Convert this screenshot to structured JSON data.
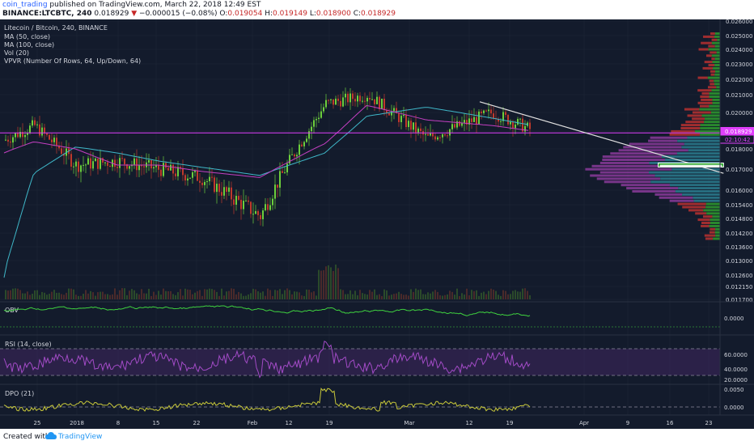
{
  "header": {
    "author": "coin_trading",
    "published_text": "published on TradingView.com, March 22, 2018 12:49 EST",
    "symbol": "BINANCE:LTCBTC, 240",
    "last": "0.018929",
    "change": "−0.000015 (−0.08%)",
    "o_label": "O:",
    "o": "0.019054",
    "h_label": "H:",
    "h": "0.019149",
    "l_label": "L:",
    "l": "0.018900",
    "c_label": "C:",
    "c": "0.018929"
  },
  "legend": {
    "title": "Litecoin / Bitcoin, 240, BINANCE",
    "ma50": "MA (50, close)",
    "ma100": "MA (100, close)",
    "vol": "Vol (20)",
    "vpvr": "VPVR (Number Of Rows, 64, Up/Down, 64)"
  },
  "price_axis": {
    "labels": [
      "0.026000",
      "0.025000",
      "0.024000",
      "0.023000",
      "0.022000",
      "0.021000",
      "0.020000",
      "0.019000",
      "0.018000",
      "0.017000",
      "0.016000",
      "0.015400",
      "0.014800",
      "0.014200",
      "0.013600",
      "0.013000",
      "0.012600",
      "0.012150",
      "0.011700"
    ],
    "last_price_tag": "0.018929",
    "countdown_tag": "02:10:42"
  },
  "x_axis": {
    "labels": [
      "25",
      "2018",
      "8",
      "15",
      "22",
      "Feb",
      "12",
      "19",
      "Mar",
      "12",
      "19",
      "Apr",
      "9",
      "16",
      "23"
    ]
  },
  "panes": {
    "obv": {
      "label": "OBV",
      "axis": [
        "0.0000"
      ]
    },
    "rsi": {
      "label": "RSI (14, close)",
      "axis": [
        "60.0000",
        "40.0000",
        "20.0000"
      ]
    },
    "dpo": {
      "label": "DPO (21)",
      "axis": [
        "0.0050",
        "0.0000"
      ]
    }
  },
  "colors": {
    "bg": "#131b2c",
    "up": "#6ccf3c",
    "down": "#c0392b",
    "ma50": "#c43fc2",
    "ma100": "#3fb7c8",
    "obv": "#3fd13f",
    "rsi": "#a24bc6",
    "dpo": "#c8c83a",
    "hline": "#e040fb"
  },
  "chart_data": {
    "type": "line",
    "title": "Litecoin / Bitcoin, 240, BINANCE",
    "x": [
      "Dec 20",
      "Dec 25",
      "Jan 1",
      "Jan 8",
      "Jan 15",
      "Jan 22",
      "Feb 1",
      "Feb 12",
      "Feb 19",
      "Mar 1",
      "Mar 12",
      "Mar 19",
      "Mar 22"
    ],
    "series": [
      {
        "name": "Litecoin / Bitcoin",
        "values": [
          0.0185,
          0.0193,
          0.0172,
          0.0174,
          0.017,
          0.0166,
          0.0149,
          0.0205,
          0.021,
          0.0186,
          0.02,
          0.019,
          0.0189
        ]
      },
      {
        "name": "MA (50, close)",
        "values": [
          0.0178,
          0.0184,
          0.018,
          0.0172,
          0.0172,
          0.0169,
          0.0166,
          0.0183,
          0.0204,
          0.0196,
          0.0193,
          0.019,
          0.0189
        ]
      },
      {
        "name": "MA (100, close)",
        "values": [
          0.0125,
          0.0168,
          0.0181,
          0.0178,
          0.0174,
          0.0171,
          0.0167,
          0.0178,
          0.0198,
          0.0203,
          0.0197,
          0.0193,
          0.0191
        ]
      }
    ],
    "yaxis_ticks": [
      "0.026000",
      "0.025000",
      "0.024000",
      "0.023000",
      "0.022000",
      "0.021000",
      "0.020000",
      "0.019000",
      "0.018000",
      "0.017000",
      "0.016000",
      "0.015400",
      "0.014800",
      "0.014200",
      "0.013600",
      "0.013000",
      "0.012600",
      "0.012150",
      "0.011700"
    ],
    "xaxis_ticks": [
      "25",
      "2018",
      "8",
      "15",
      "22",
      "Feb",
      "12",
      "19",
      "Mar",
      "12",
      "19",
      "Apr",
      "9",
      "16",
      "23"
    ],
    "horizontal_line": 0.0189,
    "trendline": {
      "from": [
        "Mar 10",
        0.0206
      ],
      "to": [
        "Apr 20",
        0.0168
      ]
    },
    "target_box": {
      "x": [
        "Apr 9",
        "Apr 20"
      ],
      "y": [
        0.0171,
        0.0173
      ]
    },
    "grid": true
  },
  "footer": {
    "created": "Created with",
    "brand": "TradingView"
  }
}
